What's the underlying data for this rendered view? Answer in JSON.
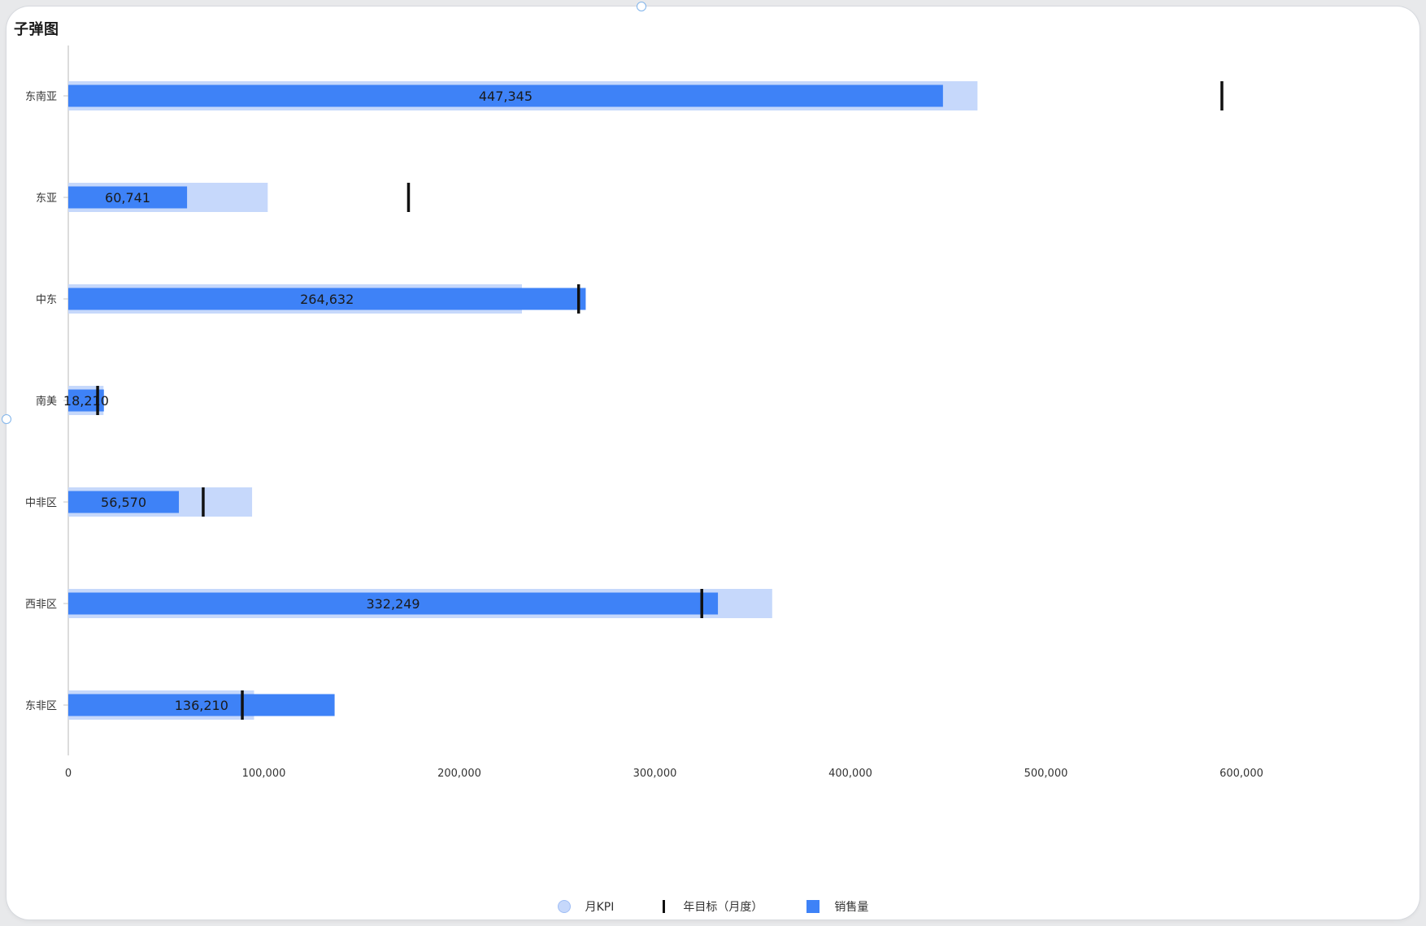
{
  "chart_data": {
    "type": "bar",
    "subtype": "bullet",
    "orientation": "horizontal",
    "title": "子弹图",
    "categories": [
      "东南亚",
      "东亚",
      "中东",
      "南美",
      "中非区",
      "西非区",
      "东非区"
    ],
    "series": [
      {
        "name": "月KPI",
        "values": [
          465000,
          102000,
          232000,
          18000,
          94000,
          360000,
          95000
        ],
        "color": "#c6d8fb"
      },
      {
        "name": "年目标（月度）",
        "values": [
          590000,
          174000,
          261000,
          15000,
          69000,
          324000,
          89000
        ],
        "color": "#111111"
      },
      {
        "name": "销售量",
        "values": [
          447345,
          60741,
          264632,
          18210,
          56570,
          332249,
          136210
        ],
        "color": "#3e82f7"
      }
    ],
    "data_labels": [
      "447,345",
      "60,741",
      "264,632",
      "18,210",
      "56,570",
      "332,249",
      "136,210"
    ],
    "xlim": [
      0,
      600000
    ],
    "xticks": [
      0,
      100000,
      200000,
      300000,
      400000,
      500000,
      600000
    ],
    "xtick_labels": [
      "0",
      "100,000",
      "200,000",
      "300,000",
      "400,000",
      "500,000",
      "600,000"
    ],
    "xlabel": "",
    "ylabel": "",
    "grid": false,
    "legend_position": "bottom"
  }
}
